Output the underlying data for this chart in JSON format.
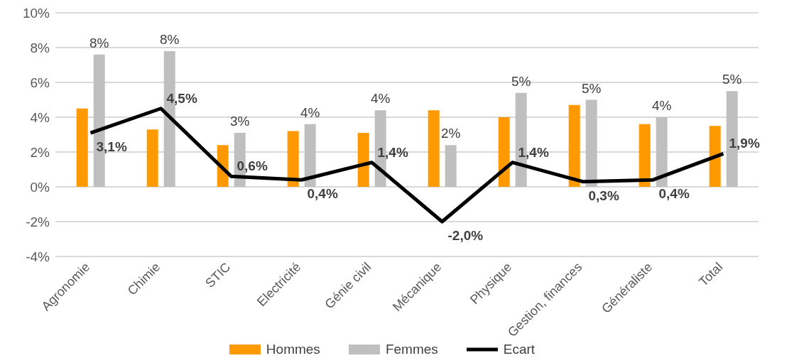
{
  "chart_data": {
    "type": "bar",
    "categories": [
      "Agronomie",
      "Chimie",
      "STIC",
      "Electricité",
      "Génie civil",
      "Mécanique",
      "Physique",
      "Gestion, finances",
      "Généraliste",
      "Total"
    ],
    "series": [
      {
        "name": "Hommes",
        "color": "#ff9900",
        "values": [
          4.5,
          3.3,
          2.4,
          3.2,
          3.1,
          4.4,
          4.0,
          4.7,
          3.6,
          3.5
        ]
      },
      {
        "name": "Femmes",
        "color": "#bfbfbf",
        "values": [
          7.6,
          7.8,
          3.1,
          3.6,
          4.4,
          2.4,
          5.4,
          5.0,
          4.0,
          5.5
        ],
        "value_labels": [
          "8%",
          "8%",
          "3%",
          "4%",
          "4%",
          "2%",
          "5%",
          "5%",
          "4%",
          "5%"
        ]
      },
      {
        "name": "Ecart",
        "type": "line",
        "color": "#000000",
        "marker": "none",
        "line_style": "solid",
        "values": [
          3.1,
          4.5,
          0.6,
          0.4,
          1.4,
          -2.0,
          1.4,
          0.3,
          0.4,
          1.9
        ],
        "value_labels": [
          "3,1%",
          "4,5%",
          "0,6%",
          "0,4%",
          "1,4%",
          "-2,0%",
          "1,4%",
          "0,3%",
          "0,4%",
          "1,9%"
        ]
      }
    ],
    "ylim": [
      -4,
      10
    ],
    "yticks": [
      {
        "value": -4,
        "label": "-4%"
      },
      {
        "value": -2,
        "label": "-2%"
      },
      {
        "value": 0,
        "label": "0%"
      },
      {
        "value": 2,
        "label": "2%"
      },
      {
        "value": 4,
        "label": "4%"
      },
      {
        "value": 6,
        "label": "6%"
      },
      {
        "value": 8,
        "label": "8%"
      },
      {
        "value": 10,
        "label": "10%"
      }
    ],
    "grid": "y",
    "legend": "bottom"
  }
}
